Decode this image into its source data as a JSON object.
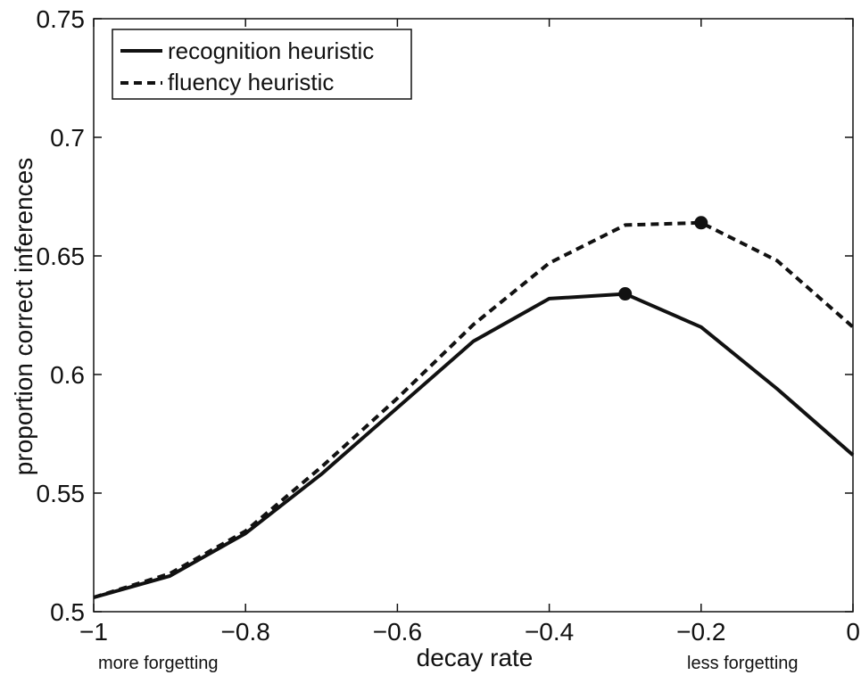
{
  "chart_data": {
    "type": "line",
    "title": "",
    "xlabel": "decay rate",
    "ylabel": "proportion correct inferences",
    "xlim": [
      -1,
      0
    ],
    "ylim": [
      0.5,
      0.75
    ],
    "xticks": [
      -1,
      -0.8,
      -0.6,
      -0.4,
      -0.2,
      0
    ],
    "xtick_labels": [
      "−1",
      "−0.8",
      "−0.6",
      "−0.4",
      "−0.2",
      "0"
    ],
    "yticks": [
      0.5,
      0.55,
      0.6,
      0.65,
      0.7,
      0.75
    ],
    "ytick_labels": [
      "0.5",
      "0.55",
      "0.6",
      "0.65",
      "0.7",
      "0.75"
    ],
    "x": [
      -1,
      -0.9,
      -0.8,
      -0.7,
      -0.6,
      -0.5,
      -0.4,
      -0.3,
      -0.2,
      -0.1,
      0
    ],
    "series": [
      {
        "name": "recognition heuristic",
        "style": "solid",
        "values": [
          0.506,
          0.515,
          0.533,
          0.558,
          0.586,
          0.614,
          0.632,
          0.634,
          0.62,
          0.594,
          0.566
        ],
        "peak_x": -0.3
      },
      {
        "name": "fluency heuristic",
        "style": "dashed",
        "values": [
          0.506,
          0.516,
          0.534,
          0.561,
          0.59,
          0.621,
          0.647,
          0.663,
          0.664,
          0.648,
          0.62
        ],
        "peak_x": -0.2
      }
    ],
    "annotations": [
      "more forgetting",
      "less forgetting"
    ],
    "legend_position": "top-left",
    "grid": false,
    "color": "#111111"
  }
}
